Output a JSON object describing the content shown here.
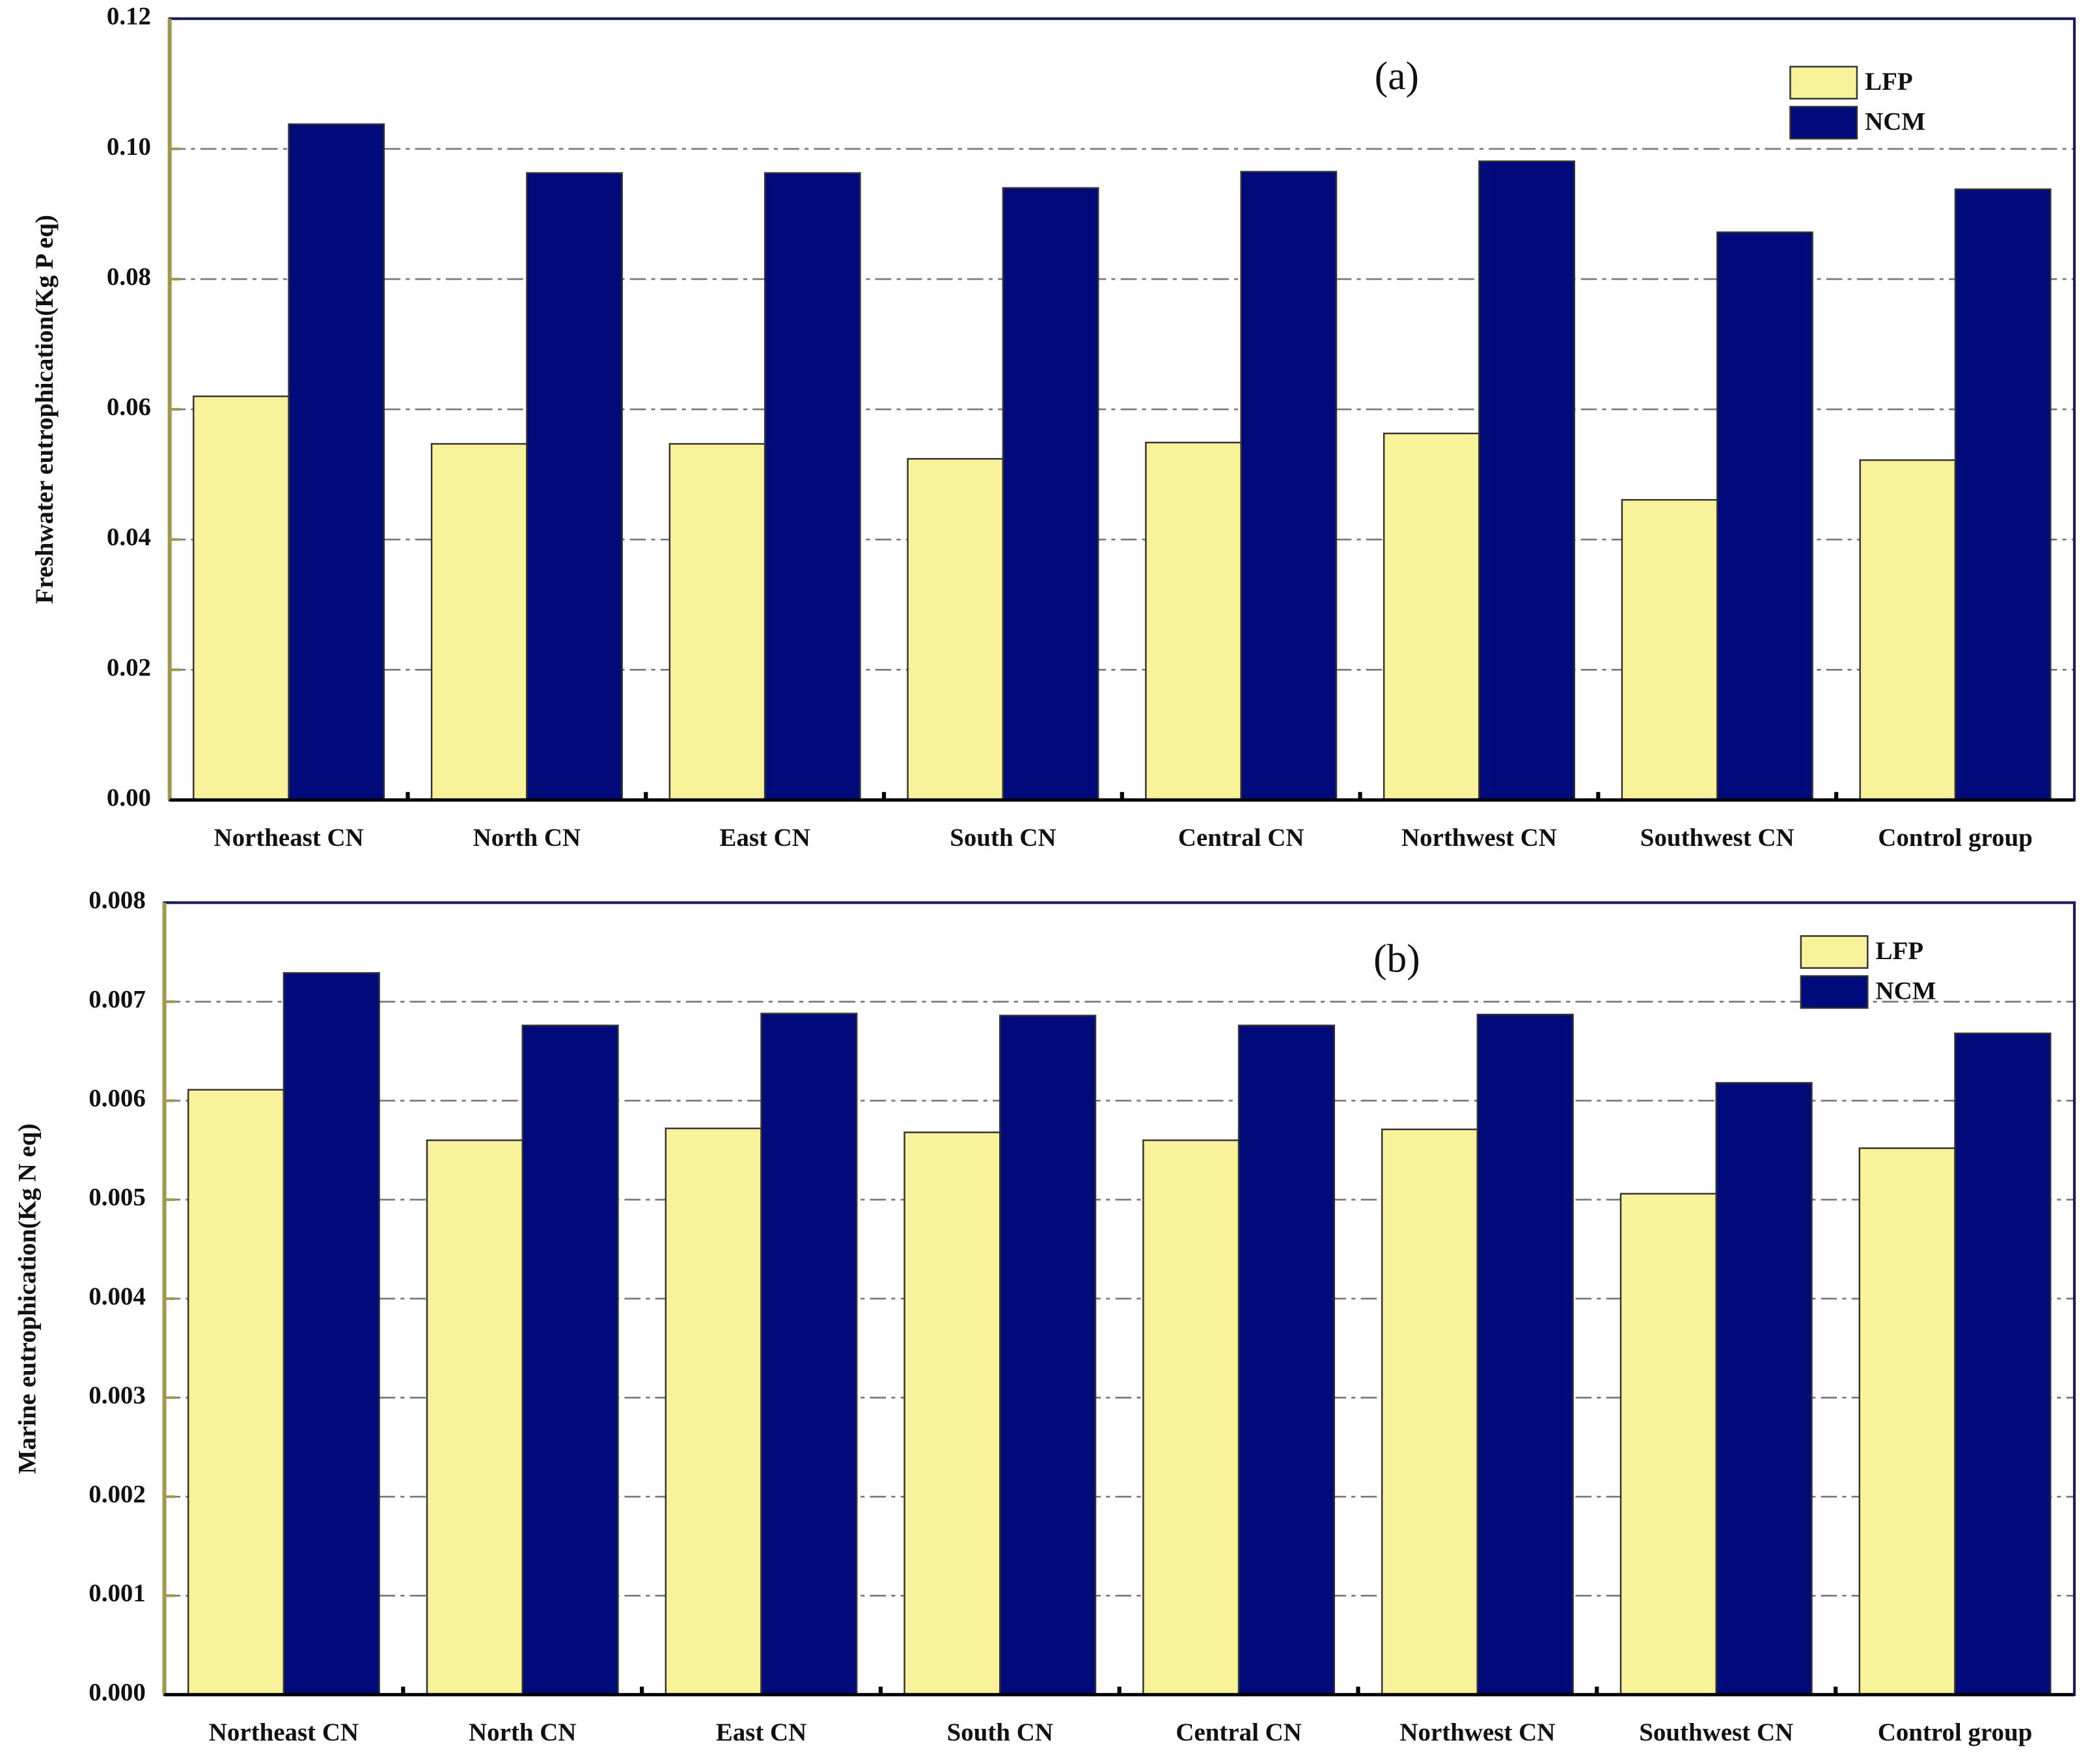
{
  "chart_data": [
    {
      "type": "bar",
      "annotation": "(a)",
      "ylabel": "Freshwater eutrophication(Kg P eq)",
      "categories": [
        "Northeast CN",
        "North CN",
        "East CN",
        "South CN",
        "Central CN",
        "Northwest CN",
        "Southwest CN",
        "Control group"
      ],
      "series": [
        {
          "name": "LFP",
          "color": "#f8f29a",
          "values": [
            0.062,
            0.0547,
            0.0547,
            0.0524,
            0.0549,
            0.0563,
            0.0461,
            0.0522
          ]
        },
        {
          "name": "NCM",
          "color": "#000a78",
          "values": [
            0.1038,
            0.0963,
            0.0963,
            0.094,
            0.0965,
            0.0981,
            0.0872,
            0.0938
          ]
        }
      ],
      "ylim": [
        0,
        0.12
      ],
      "yticks": [
        {
          "value": 0,
          "label": "0.00"
        },
        0.02,
        0.04,
        0.06,
        0.08,
        {
          "value": 0.1,
          "label": "0.10"
        },
        0.12
      ],
      "grid": true,
      "legend": "top-right"
    },
    {
      "type": "bar",
      "annotation": "(b)",
      "ylabel": "Marine eutrophication(Kg N eq)",
      "categories": [
        "Northeast CN",
        "North CN",
        "East CN",
        "South CN",
        "Central CN",
        "Northwest CN",
        "Southwest CN",
        "Control group"
      ],
      "series": [
        {
          "name": "LFP",
          "color": "#f8f29a",
          "values": [
            0.00611,
            0.0056,
            0.00572,
            0.00568,
            0.0056,
            0.00571,
            0.00506,
            0.00552
          ]
        },
        {
          "name": "NCM",
          "color": "#000a78",
          "values": [
            0.00729,
            0.00676,
            0.00688,
            0.00686,
            0.00676,
            0.00687,
            0.00618,
            0.00668
          ]
        }
      ],
      "ylim": [
        0,
        0.008
      ],
      "yticks": [
        {
          "value": 0,
          "label": "0.000"
        },
        0.001,
        0.002,
        0.003,
        0.004,
        0.005,
        0.006,
        0.007,
        0.008
      ],
      "grid": true,
      "legend": "top-right"
    }
  ]
}
